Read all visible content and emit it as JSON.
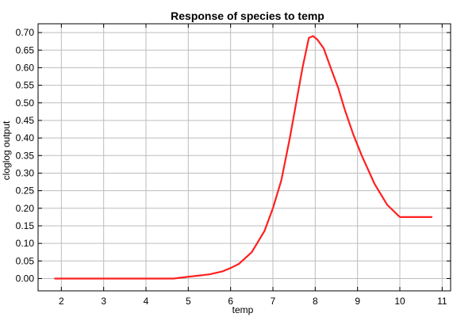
{
  "chart_data": {
    "type": "line",
    "title": "Response of species to temp",
    "xlabel": "temp",
    "ylabel": "cloglog output",
    "xlim": [
      1.45,
      11.2
    ],
    "ylim": [
      -0.035,
      0.725
    ],
    "x_ticks": [
      2,
      3,
      4,
      5,
      6,
      7,
      8,
      9,
      10,
      11
    ],
    "y_ticks": [
      0.0,
      0.05,
      0.1,
      0.15,
      0.2,
      0.25,
      0.3,
      0.35,
      0.4,
      0.45,
      0.5,
      0.55,
      0.6,
      0.65,
      0.7
    ],
    "y_tick_labels": [
      "0.00",
      "0.05",
      "0.10",
      "0.15",
      "0.20",
      "0.25",
      "0.30",
      "0.35",
      "0.40",
      "0.45",
      "0.50",
      "0.55",
      "0.60",
      "0.65",
      "0.70"
    ],
    "grid": true,
    "series": [
      {
        "color": "#ff2020",
        "x": [
          1.85,
          4.65,
          5.0,
          5.5,
          5.8,
          6.0,
          6.2,
          6.5,
          6.8,
          7.0,
          7.2,
          7.4,
          7.55,
          7.7,
          7.85,
          7.95,
          8.05,
          8.2,
          8.35,
          8.55,
          8.7,
          8.9,
          9.1,
          9.4,
          9.7,
          10.0,
          10.3,
          10.75
        ],
        "y": [
          0.0,
          0.0,
          0.005,
          0.012,
          0.02,
          0.03,
          0.042,
          0.075,
          0.135,
          0.2,
          0.28,
          0.4,
          0.5,
          0.6,
          0.685,
          0.69,
          0.68,
          0.655,
          0.605,
          0.54,
          0.48,
          0.41,
          0.35,
          0.27,
          0.21,
          0.175,
          0.175,
          0.175
        ]
      }
    ]
  }
}
